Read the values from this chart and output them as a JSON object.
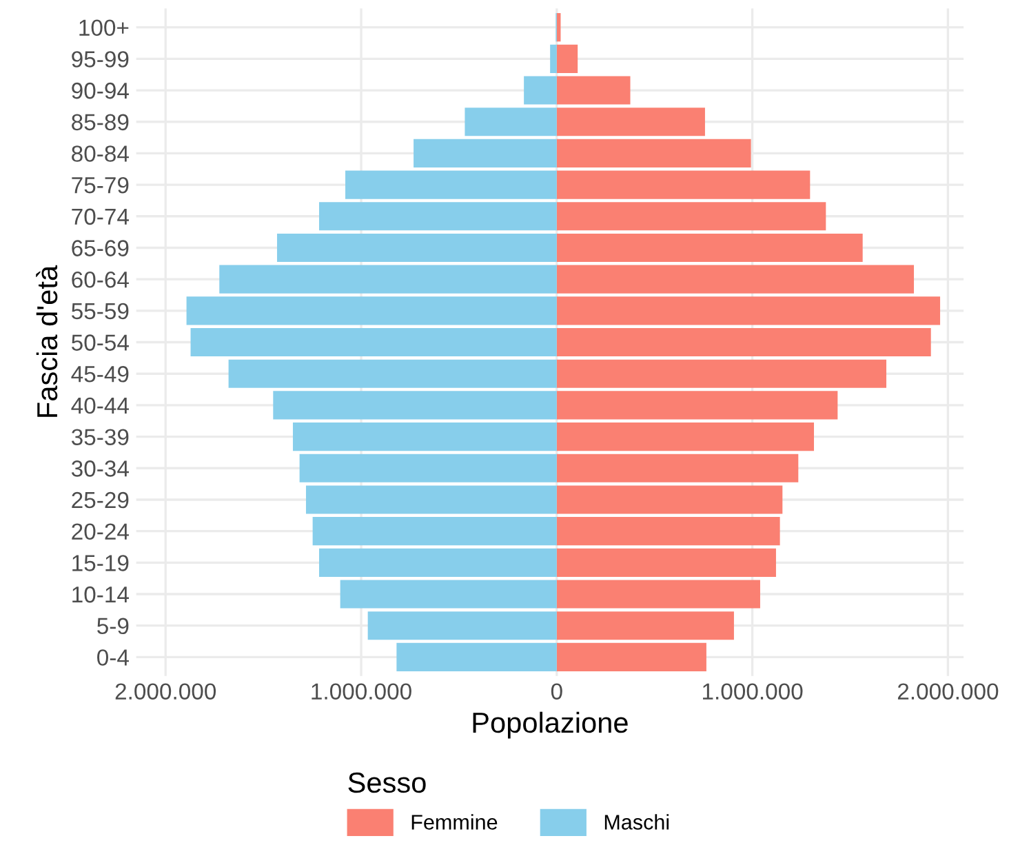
{
  "chart_data": {
    "type": "bar",
    "orientation": "horizontal",
    "xlabel": "Popolazione",
    "ylabel": "Fascia d'età",
    "legend_title": "Sesso",
    "legend": "bottom",
    "grid": true,
    "stacked": true,
    "categories": [
      "100+",
      "95-99",
      "90-94",
      "85-89",
      "80-84",
      "75-79",
      "70-74",
      "65-69",
      "60-64",
      "55-59",
      "50-54",
      "45-49",
      "40-44",
      "35-39",
      "30-34",
      "25-29",
      "20-24",
      "15-19",
      "10-14",
      "5-9",
      "0-4"
    ],
    "series": [
      {
        "name": "Femmine",
        "color": "#fa8072",
        "values": [
          20000,
          107000,
          376000,
          758000,
          993000,
          1295000,
          1376000,
          1564000,
          1826000,
          1960000,
          1913000,
          1685000,
          1436000,
          1315000,
          1235000,
          1154000,
          1141000,
          1121000,
          1040000,
          906000,
          765000
        ]
      },
      {
        "name": "Maschi",
        "color": "#87ceeb",
        "values": [
          -5000,
          -34000,
          -168000,
          -470000,
          -732000,
          -1081000,
          -1215000,
          -1430000,
          -1725000,
          -1893000,
          -1872000,
          -1678000,
          -1450000,
          -1349000,
          -1315000,
          -1282000,
          -1248000,
          -1215000,
          -1107000,
          -966000,
          -819000
        ]
      }
    ],
    "xlim": [
      -2150000,
      2080000
    ],
    "xticks": [
      {
        "value": -2000000,
        "label": "2.000.000"
      },
      {
        "value": -1000000,
        "label": "1.000.000"
      },
      0,
      {
        "value": 1000000,
        "label": "1.000.000"
      },
      {
        "value": 2000000,
        "label": "2.000.000"
      }
    ]
  }
}
